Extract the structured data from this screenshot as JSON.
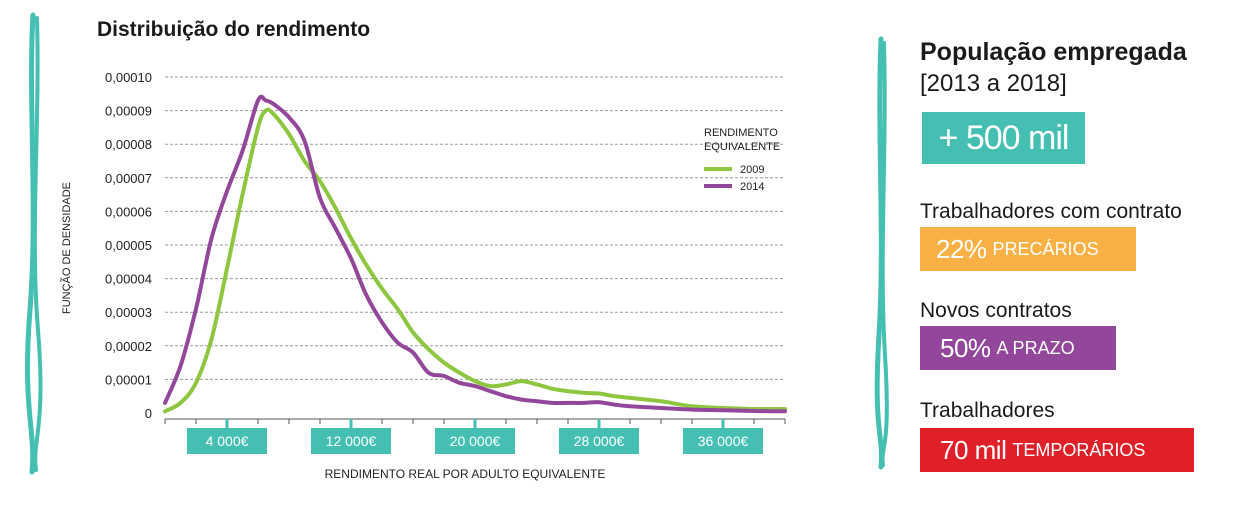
{
  "chart_data": {
    "type": "line",
    "title": "Distribuição do rendimento",
    "xlabel": "RENDIMENTO REAL POR ADULTO EQUIVALENTE",
    "ylabel": "FUNÇÃO DE DENSIDADE",
    "xlim": [
      0,
      40000
    ],
    "ylim": [
      0,
      0.0001
    ],
    "x_ticks": [
      4000,
      12000,
      20000,
      28000,
      36000
    ],
    "x_tick_labels": [
      "4 000€",
      "12 000€",
      "20 000€",
      "28 000€",
      "36 000€"
    ],
    "y_ticks": [
      0,
      1e-05,
      2e-05,
      3e-05,
      4e-05,
      5e-05,
      6e-05,
      7e-05,
      8e-05,
      9e-05,
      0.0001
    ],
    "y_tick_labels": [
      "0",
      "0,00001",
      "0,00002",
      "0,00003",
      "0,00004",
      "0,00005",
      "0,00006",
      "0,00007",
      "0,00008",
      "0,00009",
      "0,00010"
    ],
    "grid": "horizontal dashed",
    "legend_title": "RENDIMENTO EQUIVALENTE",
    "legend_placement": "top-right",
    "x": [
      0,
      1000,
      2000,
      3000,
      4000,
      5000,
      6000,
      6500,
      7000,
      8000,
      9000,
      10000,
      11000,
      12000,
      13000,
      14000,
      15000,
      16000,
      17000,
      18000,
      19000,
      20000,
      21000,
      22000,
      23000,
      24000,
      25000,
      26000,
      27000,
      28000,
      29000,
      30000,
      32000,
      34000,
      36000,
      38000,
      40000
    ],
    "series": [
      {
        "name": "2009",
        "color": "#8dc63f",
        "values": [
          5e-07,
          3e-06,
          9e-06,
          2.2e-05,
          4.3e-05,
          6.5e-05,
          8.5e-05,
          9e-05,
          8.9e-05,
          8.3e-05,
          7.5e-05,
          6.9e-05,
          6.1e-05,
          5.2e-05,
          4.4e-05,
          3.7e-05,
          3.1e-05,
          2.4e-05,
          1.9e-05,
          1.5e-05,
          1.2e-05,
          9.5e-06,
          8e-06,
          8.5e-06,
          9.5e-06,
          8.5e-06,
          7.2e-06,
          6.5e-06,
          6e-06,
          5.8e-06,
          5e-06,
          4.5e-06,
          3.5e-06,
          2e-06,
          1.5e-06,
          1.2e-06,
          1.2e-06
        ]
      },
      {
        "name": "2014",
        "color": "#93479b",
        "values": [
          3e-06,
          1.4e-05,
          3.1e-05,
          5.2e-05,
          6.6e-05,
          7.8e-05,
          9.3e-05,
          9.3e-05,
          9.2e-05,
          8.8e-05,
          8.1e-05,
          6.4e-05,
          5.5e-05,
          4.6e-05,
          3.5e-05,
          2.7e-05,
          2.1e-05,
          1.8e-05,
          1.2e-05,
          1.1e-05,
          9e-06,
          8e-06,
          6.5e-06,
          5e-06,
          4e-06,
          3.5e-06,
          3e-06,
          3e-06,
          3e-06,
          3.2e-06,
          2.5e-06,
          2e-06,
          1.5e-06,
          1e-06,
          8e-07,
          6e-07,
          5e-07
        ]
      }
    ]
  },
  "panel": {
    "title": "População empregada",
    "period": "[2013 a 2018]",
    "headline": {
      "value": "+ 500 mil",
      "color": "#45bfb1"
    },
    "stats": [
      {
        "label": "Trabalhadores com contrato",
        "value": "22%",
        "suffix": "PRECÁRIOS",
        "color": "#f9b145"
      },
      {
        "label": "Novos contratos",
        "value": "50%",
        "suffix": "A PRAZO",
        "color": "#93479b"
      },
      {
        "label": "Trabalhadores",
        "value": "70 mil",
        "suffix": "TEMPORÁRIOS",
        "color": "#e02028"
      }
    ]
  },
  "accent_color": "#45bfb1"
}
